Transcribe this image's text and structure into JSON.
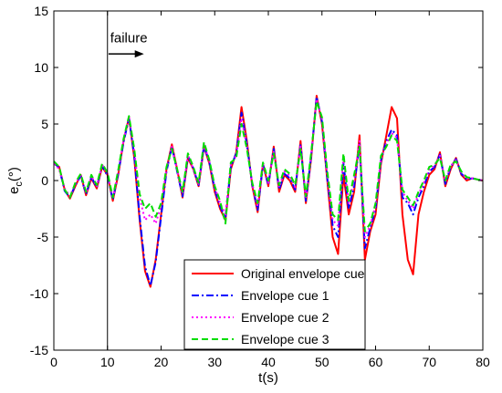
{
  "chart_data": {
    "type": "line",
    "title": "",
    "xlabel": "t(s)",
    "ylabel_main": "e",
    "ylabel_sub": "c",
    "ylabel_unit": "(°)",
    "xlim": [
      0,
      80
    ],
    "ylim": [
      -15,
      15
    ],
    "xticks": [
      0,
      10,
      20,
      30,
      40,
      50,
      60,
      70,
      80
    ],
    "yticks": [
      -15,
      -10,
      -5,
      0,
      5,
      10,
      15
    ],
    "grid": false,
    "legend_position": "bottom-center",
    "annotation": {
      "text": "failure",
      "x": 10.5,
      "y": 12.2,
      "arrow_from": [
        10.2,
        11.2
      ],
      "arrow_to": [
        16.8,
        11.2
      ]
    },
    "vline_x": 10,
    "series": [
      {
        "name": "Original envelope cue",
        "color": "#ff0000",
        "dash": "solid",
        "x": [
          0,
          1,
          2,
          3,
          4,
          5,
          6,
          7,
          8,
          9,
          10,
          11,
          12,
          13,
          14,
          15,
          16,
          17,
          18,
          19,
          20,
          21,
          22,
          23,
          24,
          25,
          26,
          27,
          28,
          29,
          30,
          31,
          32,
          33,
          34,
          35,
          36,
          37,
          38,
          39,
          40,
          41,
          42,
          43,
          44,
          45,
          46,
          47,
          48,
          49,
          50,
          51,
          52,
          53,
          54,
          55,
          56,
          57,
          58,
          59,
          60,
          61,
          62,
          63,
          64,
          65,
          66,
          67,
          68,
          69,
          70,
          71,
          72,
          73,
          74,
          75,
          76,
          77,
          78,
          79,
          80
        ],
        "y": [
          1.5,
          1.2,
          -0.8,
          -1.6,
          -0.5,
          0.5,
          -1.3,
          0.2,
          -0.7,
          1.2,
          0.5,
          -1.8,
          0.5,
          3.5,
          5.6,
          2.0,
          -3.5,
          -8.0,
          -9.4,
          -7.0,
          -3.0,
          1.0,
          3.2,
          1.0,
          -1.5,
          2.0,
          1.0,
          -0.5,
          3.0,
          1.5,
          -1.0,
          -2.5,
          -3.5,
          1.0,
          2.5,
          6.5,
          3.5,
          -0.5,
          -2.8,
          1.5,
          -0.5,
          3.0,
          -1.0,
          0.5,
          0.0,
          -1.0,
          3.5,
          -2.0,
          2.0,
          7.5,
          5.0,
          0.0,
          -5.0,
          -6.5,
          0.5,
          -3.0,
          -1.0,
          4.0,
          -7.0,
          -4.5,
          -3.0,
          1.5,
          4.0,
          6.5,
          5.5,
          -3.0,
          -7.0,
          -8.3,
          -3.0,
          -1.0,
          0.5,
          1.0,
          2.5,
          -0.5,
          1.0,
          2.0,
          0.5,
          0.0,
          0.2,
          0.1,
          0.0
        ]
      },
      {
        "name": "Envelope cue 1",
        "color": "#0000ff",
        "dash": "dashdot",
        "x": [
          0,
          1,
          2,
          3,
          4,
          5,
          6,
          7,
          8,
          9,
          10,
          11,
          12,
          13,
          14,
          15,
          16,
          17,
          18,
          19,
          20,
          21,
          22,
          23,
          24,
          25,
          26,
          27,
          28,
          29,
          30,
          31,
          32,
          33,
          34,
          35,
          36,
          37,
          38,
          39,
          40,
          41,
          42,
          43,
          44,
          45,
          46,
          47,
          48,
          49,
          50,
          51,
          52,
          53,
          54,
          55,
          56,
          57,
          58,
          59,
          60,
          61,
          62,
          63,
          64,
          65,
          66,
          67,
          68,
          69,
          70,
          71,
          72,
          73,
          74,
          75,
          76,
          77,
          78,
          79,
          80
        ],
        "y": [
          1.6,
          1.1,
          -0.9,
          -1.5,
          -0.4,
          0.4,
          -1.2,
          0.3,
          -0.6,
          1.3,
          0.4,
          -1.7,
          0.6,
          3.4,
          5.5,
          2.2,
          -3.2,
          -7.6,
          -9.3,
          -7.2,
          -3.2,
          0.8,
          3.0,
          0.8,
          -1.4,
          2.2,
          1.1,
          -0.4,
          3.1,
          1.6,
          -0.8,
          -2.3,
          -3.3,
          1.2,
          2.4,
          6.0,
          3.2,
          -0.4,
          -2.6,
          1.4,
          -0.4,
          2.8,
          -0.8,
          0.6,
          0.2,
          -0.8,
          3.2,
          -1.8,
          2.2,
          7.4,
          5.2,
          0.2,
          -4.0,
          -5.0,
          1.5,
          -2.5,
          -0.5,
          3.2,
          -6.0,
          -4.2,
          -2.5,
          1.8,
          3.5,
          4.5,
          4.0,
          -1.5,
          -2.0,
          -3.0,
          -1.5,
          -0.5,
          0.8,
          1.2,
          2.3,
          -0.3,
          1.2,
          1.9,
          0.6,
          0.1,
          0.2,
          0.1,
          0.0
        ]
      },
      {
        "name": "Envelope cue 2",
        "color": "#ff00ff",
        "dash": "dotted",
        "x": [
          0,
          1,
          2,
          3,
          4,
          5,
          6,
          7,
          8,
          9,
          10,
          11,
          12,
          13,
          14,
          15,
          16,
          17,
          18,
          19,
          20,
          21,
          22,
          23,
          24,
          25,
          26,
          27,
          28,
          29,
          30,
          31,
          32,
          33,
          34,
          35,
          36,
          37,
          38,
          39,
          40,
          41,
          42,
          43,
          44,
          45,
          46,
          47,
          48,
          49,
          50,
          51,
          52,
          53,
          54,
          55,
          56,
          57,
          58,
          59,
          60,
          61,
          62,
          63,
          64,
          65,
          66,
          67,
          68,
          69,
          70,
          71,
          72,
          73,
          74,
          75,
          76,
          77,
          78,
          79,
          80
        ],
        "y": [
          1.5,
          1.0,
          -0.7,
          -1.4,
          -0.3,
          0.5,
          -1.1,
          0.4,
          -0.5,
          1.4,
          0.6,
          -1.6,
          0.8,
          3.6,
          5.6,
          2.6,
          -1.5,
          -3.5,
          -3.0,
          -3.8,
          -2.2,
          1.0,
          3.0,
          0.9,
          -1.2,
          2.3,
          1.0,
          -0.3,
          3.2,
          1.7,
          -0.6,
          -2.0,
          -3.0,
          1.4,
          2.2,
          5.5,
          3.0,
          -0.3,
          -2.3,
          1.5,
          -0.2,
          2.6,
          -0.6,
          0.8,
          0.4,
          -0.6,
          3.0,
          -1.6,
          2.3,
          7.2,
          5.4,
          0.5,
          -3.5,
          -4.0,
          2.0,
          -2.0,
          0.0,
          3.5,
          -5.0,
          -4.0,
          -2.2,
          2.0,
          3.2,
          4.2,
          3.8,
          -1.0,
          -1.8,
          -2.5,
          -1.2,
          -0.2,
          1.0,
          1.3,
          2.2,
          -0.1,
          1.3,
          1.8,
          0.7,
          0.2,
          0.2,
          0.1,
          0.0
        ]
      },
      {
        "name": "Envelope cue 3",
        "color": "#00dd00",
        "dash": "dashed",
        "x": [
          0,
          1,
          2,
          3,
          4,
          5,
          6,
          7,
          8,
          9,
          10,
          11,
          12,
          13,
          14,
          15,
          16,
          17,
          18,
          19,
          20,
          21,
          22,
          23,
          24,
          25,
          26,
          27,
          28,
          29,
          30,
          31,
          32,
          33,
          34,
          35,
          36,
          37,
          38,
          39,
          40,
          41,
          42,
          43,
          44,
          45,
          46,
          47,
          48,
          49,
          50,
          51,
          52,
          53,
          54,
          55,
          56,
          57,
          58,
          59,
          60,
          61,
          62,
          63,
          64,
          65,
          66,
          67,
          68,
          69,
          70,
          71,
          72,
          73,
          74,
          75,
          76,
          77,
          78,
          79,
          80
        ],
        "y": [
          1.7,
          1.2,
          -0.8,
          -1.5,
          -0.2,
          0.6,
          -1.0,
          0.5,
          -0.4,
          1.5,
          0.7,
          -1.5,
          0.9,
          3.7,
          5.7,
          2.8,
          -1.2,
          -2.5,
          -2.0,
          -3.2,
          -2.0,
          1.2,
          2.8,
          1.0,
          -1.0,
          2.4,
          1.2,
          -0.2,
          3.4,
          1.8,
          -0.5,
          -1.8,
          -3.8,
          1.6,
          2.0,
          5.0,
          2.8,
          -0.2,
          -2.0,
          1.6,
          0.0,
          2.4,
          -0.4,
          1.0,
          0.6,
          -0.4,
          2.8,
          -1.4,
          2.5,
          7.0,
          5.6,
          0.8,
          -3.0,
          -3.5,
          2.4,
          -1.8,
          0.5,
          3.0,
          -4.5,
          -3.8,
          -2.0,
          2.2,
          3.0,
          4.0,
          3.5,
          -0.8,
          -1.5,
          -2.2,
          -1.0,
          0.0,
          1.2,
          1.4,
          2.0,
          0.0,
          1.4,
          1.7,
          0.8,
          0.3,
          0.2,
          0.1,
          0.0
        ]
      }
    ]
  }
}
